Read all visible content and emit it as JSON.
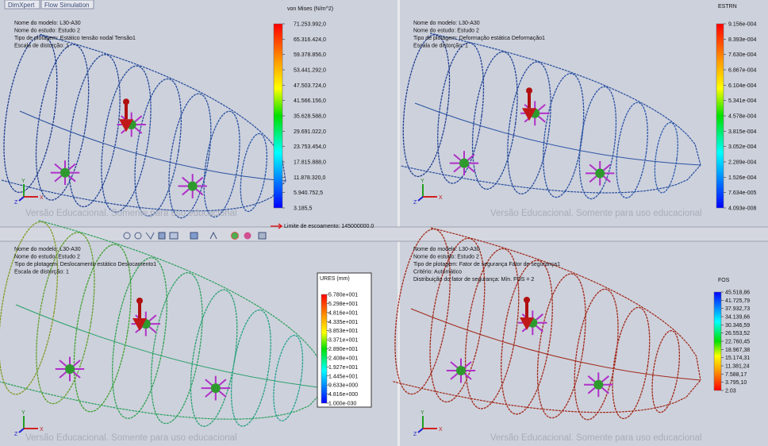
{
  "tabs": [
    "DimXpert",
    "Flow Simulation"
  ],
  "yield_note": "Limite de escoamento: 145000000.0",
  "axis_labels": [
    "X",
    "Y",
    "Z"
  ],
  "viewports": [
    {
      "info": [
        "Nome do modelo: L30-A30",
        "Nome do estudo: Estudo 2",
        "Tipo de plotagem: Estático tensão nodal Tensão1",
        "Escala de distorção: 1"
      ],
      "legend": {
        "title": "von Mises (N/m^2)",
        "labels": [
          "71.253.992,0",
          "65.316.424,0",
          "59.378.856,0",
          "53.441.292,0",
          "47.503.724,0",
          "41.566.156,0",
          "35.628.588,0",
          "29.691.022,0",
          "23.753.454,0",
          "17.815.888,0",
          "11.878.320,0",
          "5.940.752,5",
          "3.185,5"
        ]
      },
      "watermark": "Versão Educacional. Somente para uso educacional"
    },
    {
      "info": [
        "Nome do modelo: L30-A30",
        "Nome do estudo: Estudo 2",
        "Tipo de plotagem: Deformação estática Deformação1",
        "Escala de distorção: 1"
      ],
      "legend": {
        "title": "ESTRN",
        "labels": [
          "9.156e-004",
          "8.393e-004",
          "7.630e-004",
          "6.867e-004",
          "6.104e-004",
          "5.341e-004",
          "4.578e-004",
          "3.815e-004",
          "3.052e-004",
          "2.289e-004",
          "1.526e-004",
          "7.634e-005",
          "4.093e-008"
        ]
      },
      "watermark": "Versão Educacional. Somente para uso educacional"
    },
    {
      "info": [
        "Nome do modelo: L30-A30",
        "Nome do estudo: Estudo 2",
        "Tipo de plotagem: Deslocamento estático Deslocamento1",
        "Escala de distorção: 1"
      ],
      "legend": {
        "title": "URES (mm)",
        "labels": [
          "5.780e+001",
          "5.298e+001",
          "4.816e+001",
          "4.335e+001",
          "3.853e+001",
          "3.371e+001",
          "2.890e+001",
          "2.408e+001",
          "1.927e+001",
          "1.445e+001",
          "9.633e+000",
          "4.816e+000",
          "1.000e-030"
        ]
      },
      "watermark": "Versão Educacional. Somente para uso educacional"
    },
    {
      "info": [
        "Nome do modelo: L30-A30",
        "Nome do estudo: Estudo 2",
        "Tipo de plotagem: Fator de segurança Fator de segurança1",
        "Critério: Automático",
        "Distribuição do fator de segurança: Mín. FOS = 2"
      ],
      "legend": {
        "title": "FOS",
        "labels": [
          "45.518,86",
          "41.725,79",
          "37.932,73",
          "34.139,66",
          "30.346,59",
          "26.553,52",
          "22.760,45",
          "18.967,38",
          "15.174,31",
          "11.381,24",
          "7.588,17",
          "3.795,10",
          "2.03"
        ]
      },
      "watermark": "Versão Educacional. Somente para uso educacional"
    }
  ]
}
